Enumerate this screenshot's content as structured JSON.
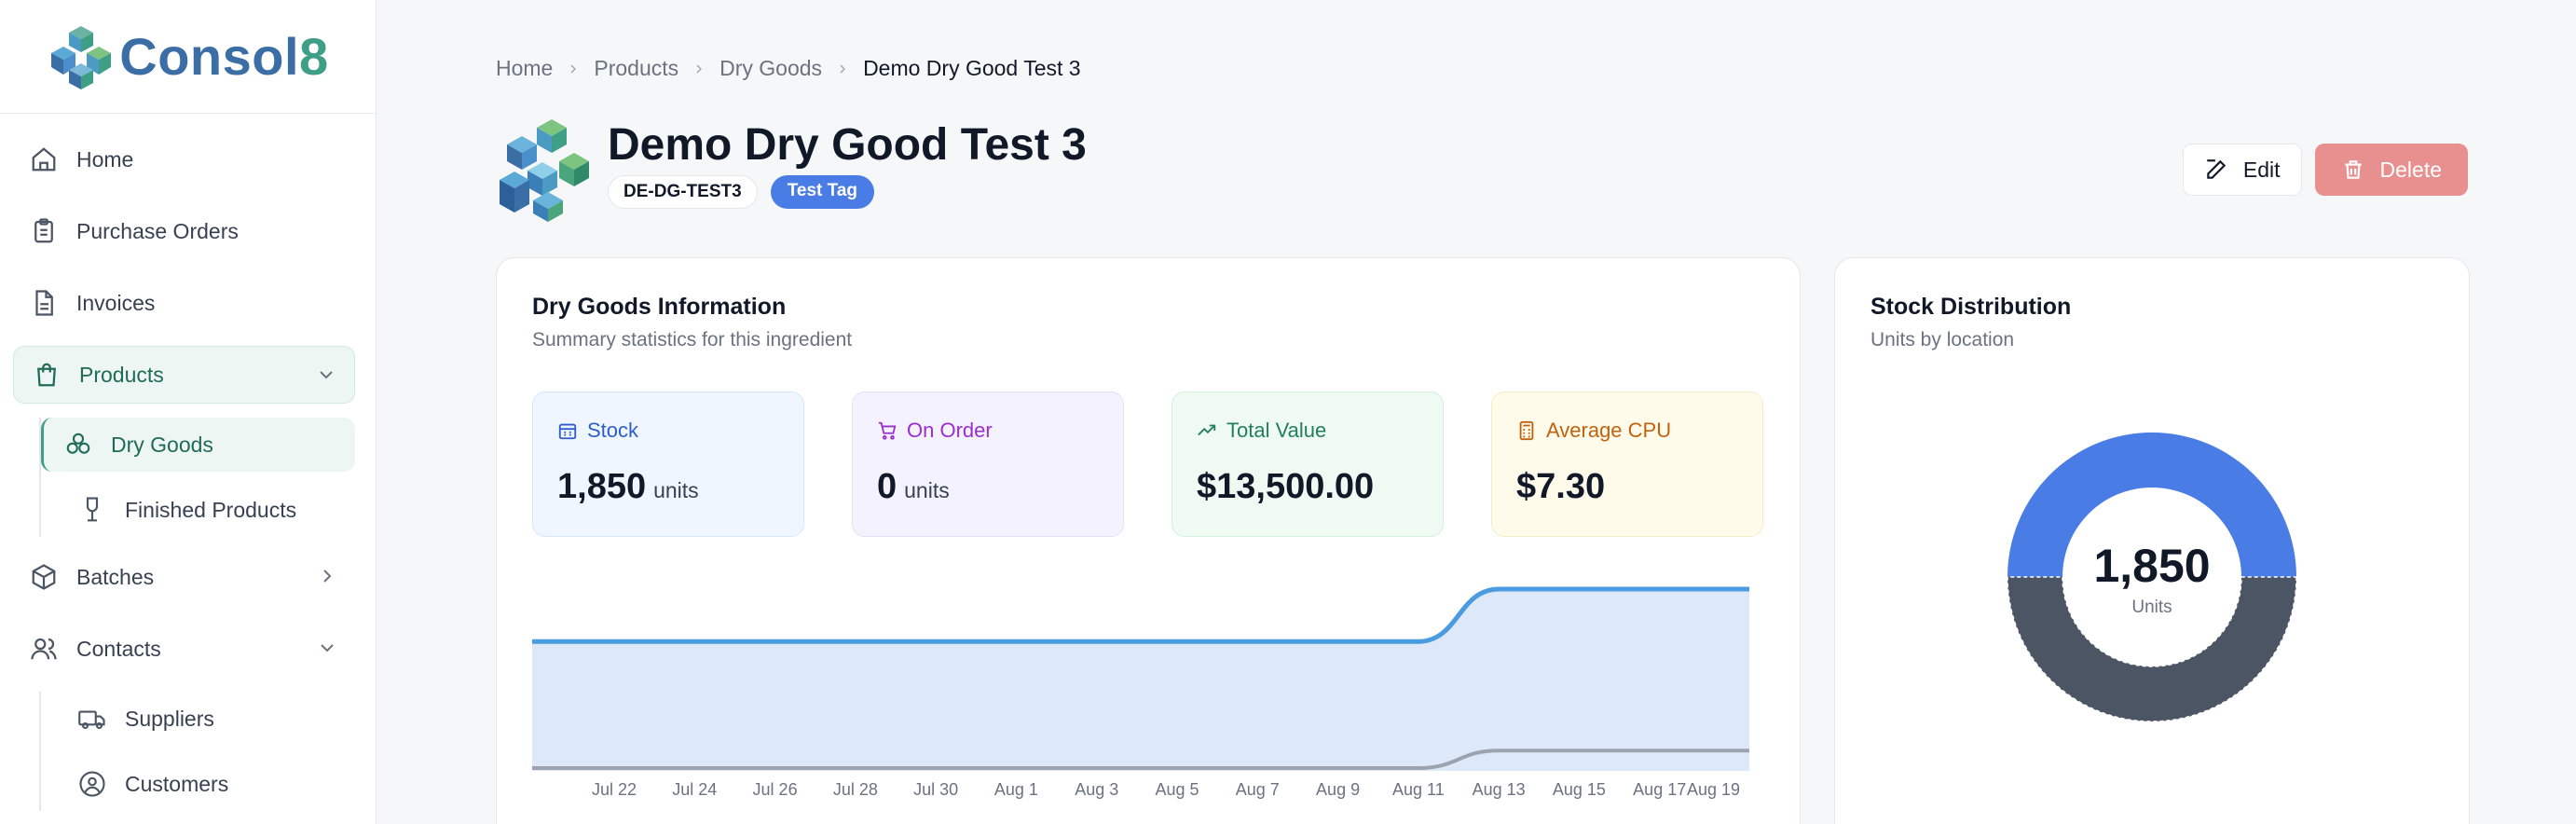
{
  "app": {
    "name_main": "Consol",
    "name_accent": "8"
  },
  "sidebar": {
    "items": [
      {
        "label": "Home",
        "icon": "home-icon"
      },
      {
        "label": "Purchase Orders",
        "icon": "clipboard-icon"
      },
      {
        "label": "Invoices",
        "icon": "file-icon"
      },
      {
        "label": "Products",
        "icon": "shopping-bag-icon",
        "expanded": true
      },
      {
        "label": "Batches",
        "icon": "box-icon",
        "expanded": false
      },
      {
        "label": "Contacts",
        "icon": "users-icon",
        "expanded": true
      }
    ],
    "products_sub": [
      {
        "label": "Dry Goods",
        "icon": "dry-goods-icon",
        "active": true
      },
      {
        "label": "Finished Products",
        "icon": "wine-glass-icon"
      }
    ],
    "contacts_sub": [
      {
        "label": "Suppliers",
        "icon": "truck-icon"
      },
      {
        "label": "Customers",
        "icon": "user-circle-icon"
      }
    ]
  },
  "breadcrumb": [
    "Home",
    "Products",
    "Dry Goods",
    "Demo Dry Good Test 3"
  ],
  "header": {
    "title": "Demo Dry Good Test 3",
    "code": "DE-DG-TEST3",
    "tag": "Test Tag",
    "edit_label": "Edit",
    "delete_label": "Delete"
  },
  "info_card": {
    "title": "Dry Goods Information",
    "subtitle": "Summary statistics for this ingredient",
    "stats": [
      {
        "label": "Stock",
        "value": "1,850",
        "unit": "units",
        "icon": "building-icon"
      },
      {
        "label": "On Order",
        "value": "0",
        "unit": "units",
        "icon": "cart-icon"
      },
      {
        "label": "Total Value",
        "value": "$13,500.00",
        "unit": "",
        "icon": "trending-up-icon"
      },
      {
        "label": "Average CPU",
        "value": "$7.30",
        "unit": "",
        "icon": "calculator-icon"
      }
    ]
  },
  "stock_card": {
    "title": "Stock Distribution",
    "subtitle": "Units by location",
    "center_value": "1,850",
    "center_label": "Units"
  },
  "colors": {
    "accent": "#3f9f86",
    "primary_blue": "#4a7ce6",
    "delete": "#e88f8f",
    "donut_blue": "#4a7ce6",
    "donut_gray": "#4b5563"
  },
  "chart_data": [
    {
      "type": "area",
      "x": [
        "Jul 22",
        "Jul 24",
        "Jul 26",
        "Jul 28",
        "Jul 30",
        "Aug 1",
        "Aug 3",
        "Aug 5",
        "Aug 7",
        "Aug 9",
        "Aug 11",
        "Aug 13",
        "Aug 15",
        "Aug 17",
        "Aug 19"
      ],
      "series": [
        {
          "values": [
            1850,
            1850,
            1850,
            1850,
            1850,
            1850,
            1850,
            1850,
            1850,
            1850,
            1850,
            2600,
            2600,
            2600,
            2600
          ]
        },
        {
          "values": [
            0,
            0,
            0,
            0,
            0,
            0,
            0,
            0,
            0,
            0,
            0,
            250,
            250,
            250,
            250
          ]
        }
      ]
    },
    {
      "type": "pie",
      "values": [
        50,
        50
      ]
    }
  ]
}
